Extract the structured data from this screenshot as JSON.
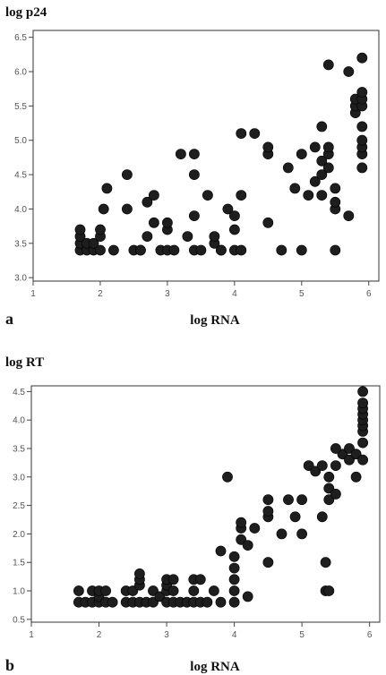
{
  "chart_data": [
    {
      "type": "scatter",
      "panel_label": "a",
      "ylabel": "log p24",
      "xlabel": "log RNA",
      "xlim": [
        1,
        6.15
      ],
      "ylim": [
        2.95,
        6.6
      ],
      "xticks": [
        "1",
        "2",
        "3",
        "4",
        "5",
        "6"
      ],
      "yticks": [
        "3.0",
        "3.5",
        "4.0",
        "4.5",
        "5.0",
        "5.5",
        "6.0",
        "6.5"
      ],
      "grid": false,
      "series": [
        {
          "points": [
            [
              1.7,
              3.4
            ],
            [
              1.7,
              3.5
            ],
            [
              1.7,
              3.6
            ],
            [
              1.7,
              3.7
            ],
            [
              1.8,
              3.4
            ],
            [
              1.8,
              3.5
            ],
            [
              1.9,
              3.4
            ],
            [
              1.9,
              3.5
            ],
            [
              2.0,
              3.4
            ],
            [
              2.0,
              3.6
            ],
            [
              2.0,
              3.7
            ],
            [
              2.05,
              4.0
            ],
            [
              2.1,
              4.3
            ],
            [
              2.2,
              3.4
            ],
            [
              2.4,
              4.0
            ],
            [
              2.4,
              4.5
            ],
            [
              2.5,
              3.4
            ],
            [
              2.6,
              3.4
            ],
            [
              2.6,
              3.4
            ],
            [
              2.7,
              3.6
            ],
            [
              2.7,
              4.1
            ],
            [
              2.8,
              3.8
            ],
            [
              2.8,
              4.2
            ],
            [
              2.9,
              3.4
            ],
            [
              3.0,
              3.4
            ],
            [
              3.0,
              3.7
            ],
            [
              3.0,
              3.8
            ],
            [
              3.1,
              3.4
            ],
            [
              3.2,
              4.8
            ],
            [
              3.3,
              3.6
            ],
            [
              3.4,
              3.4
            ],
            [
              3.4,
              3.9
            ],
            [
              3.4,
              4.5
            ],
            [
              3.4,
              4.8
            ],
            [
              3.5,
              3.4
            ],
            [
              3.6,
              4.2
            ],
            [
              3.7,
              3.5
            ],
            [
              3.7,
              3.6
            ],
            [
              3.8,
              3.4
            ],
            [
              3.8,
              3.4
            ],
            [
              3.9,
              4.0
            ],
            [
              4.0,
              3.4
            ],
            [
              4.0,
              3.7
            ],
            [
              4.0,
              3.9
            ],
            [
              4.1,
              3.4
            ],
            [
              4.1,
              4.2
            ],
            [
              4.1,
              5.1
            ],
            [
              4.3,
              5.1
            ],
            [
              4.5,
              3.8
            ],
            [
              4.5,
              4.8
            ],
            [
              4.5,
              4.9
            ],
            [
              4.7,
              3.4
            ],
            [
              4.8,
              4.6
            ],
            [
              4.9,
              4.3
            ],
            [
              5.0,
              3.4
            ],
            [
              5.0,
              4.8
            ],
            [
              5.1,
              4.2
            ],
            [
              5.2,
              4.4
            ],
            [
              5.2,
              4.9
            ],
            [
              5.3,
              4.2
            ],
            [
              5.3,
              4.5
            ],
            [
              5.3,
              4.7
            ],
            [
              5.3,
              5.2
            ],
            [
              5.4,
              4.6
            ],
            [
              5.4,
              4.8
            ],
            [
              5.4,
              4.9
            ],
            [
              5.4,
              6.1
            ],
            [
              5.5,
              3.4
            ],
            [
              5.5,
              4.0
            ],
            [
              5.5,
              4.1
            ],
            [
              5.5,
              4.3
            ],
            [
              5.7,
              3.9
            ],
            [
              5.7,
              6.0
            ],
            [
              5.8,
              5.4
            ],
            [
              5.8,
              5.5
            ],
            [
              5.8,
              5.6
            ],
            [
              5.9,
              4.6
            ],
            [
              5.9,
              4.8
            ],
            [
              5.9,
              4.9
            ],
            [
              5.9,
              5.0
            ],
            [
              5.9,
              5.2
            ],
            [
              5.9,
              5.5
            ],
            [
              5.9,
              5.6
            ],
            [
              5.9,
              5.7
            ],
            [
              5.9,
              6.2
            ]
          ]
        }
      ]
    },
    {
      "type": "scatter",
      "panel_label": "b",
      "ylabel": "log RT",
      "xlabel": "log RNA",
      "xlim": [
        1,
        6.15
      ],
      "ylim": [
        0.45,
        4.6
      ],
      "xticks": [
        "1",
        "2",
        "3",
        "4",
        "5",
        "6"
      ],
      "yticks": [
        "0.5",
        "1.0",
        "1.5",
        "2.0",
        "2.5",
        "3.0",
        "3.5",
        "4.0",
        "4.5"
      ],
      "grid": false,
      "series": [
        {
          "points": [
            [
              1.7,
              0.8
            ],
            [
              1.7,
              1.0
            ],
            [
              1.8,
              0.8
            ],
            [
              1.9,
              0.8
            ],
            [
              1.9,
              1.0
            ],
            [
              2.0,
              0.8
            ],
            [
              2.0,
              0.9
            ],
            [
              2.0,
              1.0
            ],
            [
              2.1,
              0.8
            ],
            [
              2.1,
              1.0
            ],
            [
              2.2,
              0.8
            ],
            [
              2.4,
              0.8
            ],
            [
              2.4,
              1.0
            ],
            [
              2.5,
              0.8
            ],
            [
              2.5,
              1.0
            ],
            [
              2.6,
              0.8
            ],
            [
              2.6,
              1.1
            ],
            [
              2.6,
              1.2
            ],
            [
              2.6,
              1.3
            ],
            [
              2.7,
              0.8
            ],
            [
              2.8,
              0.8
            ],
            [
              2.8,
              1.0
            ],
            [
              2.9,
              0.9
            ],
            [
              3.0,
              0.8
            ],
            [
              3.0,
              1.0
            ],
            [
              3.0,
              1.1
            ],
            [
              3.0,
              1.2
            ],
            [
              3.1,
              0.8
            ],
            [
              3.1,
              1.0
            ],
            [
              3.1,
              1.2
            ],
            [
              3.2,
              0.8
            ],
            [
              3.3,
              0.8
            ],
            [
              3.4,
              0.8
            ],
            [
              3.4,
              1.0
            ],
            [
              3.4,
              1.2
            ],
            [
              3.5,
              0.8
            ],
            [
              3.5,
              1.2
            ],
            [
              3.6,
              0.8
            ],
            [
              3.7,
              1.0
            ],
            [
              3.8,
              0.8
            ],
            [
              3.8,
              1.7
            ],
            [
              3.9,
              3.0
            ],
            [
              4.0,
              0.8
            ],
            [
              4.0,
              1.0
            ],
            [
              4.0,
              1.2
            ],
            [
              4.0,
              1.4
            ],
            [
              4.0,
              1.6
            ],
            [
              4.1,
              1.9
            ],
            [
              4.1,
              2.1
            ],
            [
              4.1,
              2.2
            ],
            [
              4.2,
              0.9
            ],
            [
              4.2,
              1.8
            ],
            [
              4.3,
              2.1
            ],
            [
              4.5,
              1.5
            ],
            [
              4.5,
              2.3
            ],
            [
              4.5,
              2.4
            ],
            [
              4.5,
              2.6
            ],
            [
              4.7,
              2.0
            ],
            [
              4.8,
              2.6
            ],
            [
              4.9,
              2.3
            ],
            [
              5.0,
              2.0
            ],
            [
              5.0,
              2.6
            ],
            [
              5.1,
              3.2
            ],
            [
              5.2,
              3.1
            ],
            [
              5.3,
              3.2
            ],
            [
              5.3,
              2.3
            ],
            [
              5.35,
              1.0
            ],
            [
              5.4,
              1.0
            ],
            [
              5.35,
              1.5
            ],
            [
              5.4,
              2.6
            ],
            [
              5.4,
              2.8
            ],
            [
              5.5,
              2.7
            ],
            [
              5.5,
              3.2
            ],
            [
              5.4,
              3.0
            ],
            [
              5.6,
              3.4
            ],
            [
              5.5,
              3.5
            ],
            [
              5.7,
              3.3
            ],
            [
              5.7,
              3.5
            ],
            [
              5.8,
              3.0
            ],
            [
              5.8,
              3.4
            ],
            [
              5.9,
              3.3
            ],
            [
              5.9,
              3.6
            ],
            [
              5.9,
              3.8
            ],
            [
              5.9,
              3.9
            ],
            [
              5.9,
              4.0
            ],
            [
              5.9,
              4.1
            ],
            [
              5.9,
              4.2
            ],
            [
              5.9,
              4.3
            ],
            [
              5.9,
              4.5
            ]
          ]
        }
      ]
    }
  ]
}
